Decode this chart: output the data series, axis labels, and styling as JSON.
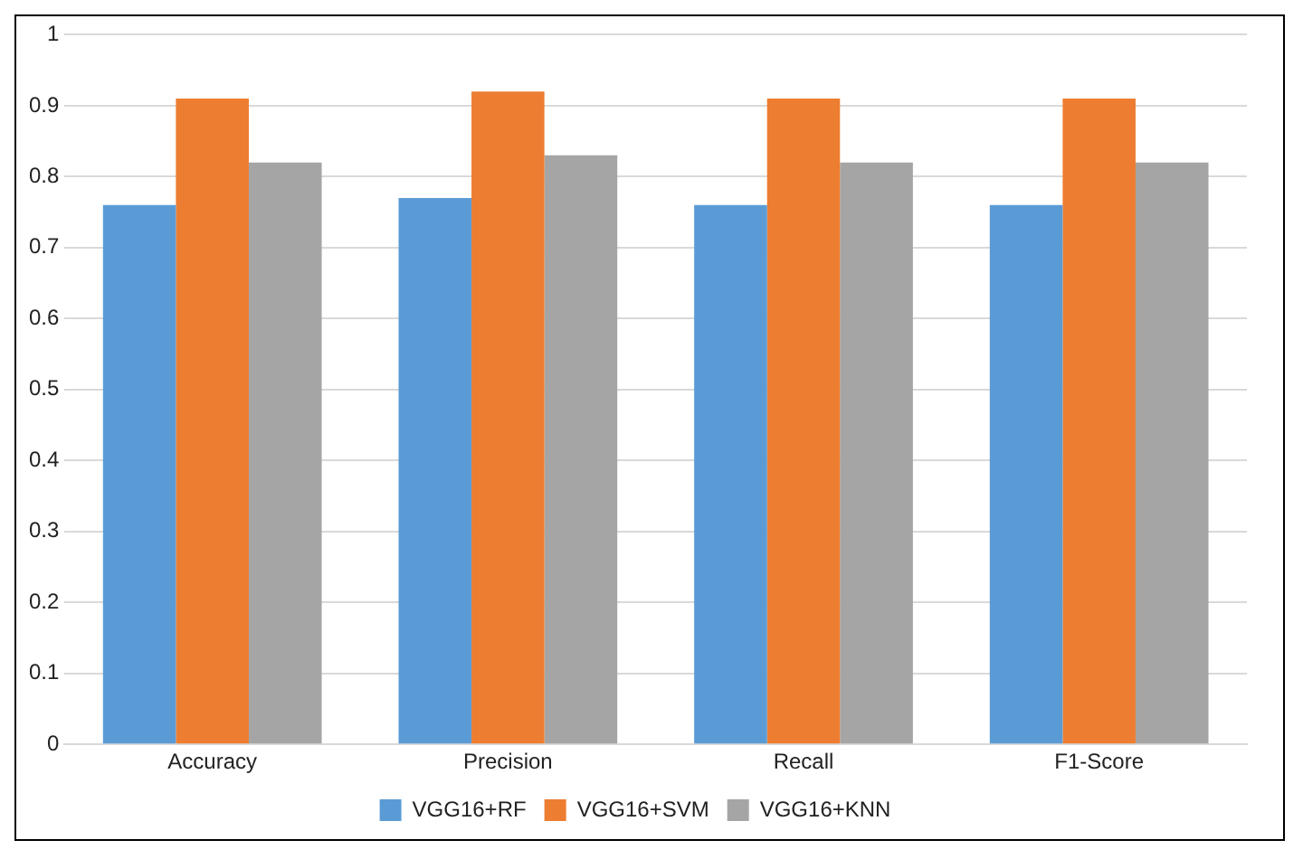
{
  "chart_data": {
    "type": "bar",
    "categories": [
      "Accuracy",
      "Precision",
      "Recall",
      "F1-Score"
    ],
    "series": [
      {
        "name": "VGG16+RF",
        "color": "#5b9bd5",
        "values": [
          0.76,
          0.77,
          0.76,
          0.76
        ]
      },
      {
        "name": "VGG16+SVM",
        "color": "#ed7d31",
        "values": [
          0.91,
          0.92,
          0.91,
          0.91
        ]
      },
      {
        "name": "VGG16+KNN",
        "color": "#a5a5a5",
        "values": [
          0.82,
          0.83,
          0.82,
          0.82
        ]
      }
    ],
    "ylim": [
      0,
      1
    ],
    "yticks": [
      0,
      0.1,
      0.2,
      0.3,
      0.4,
      0.5,
      0.6,
      0.7,
      0.8,
      0.9,
      1
    ],
    "grid": "y",
    "legend": "bottom"
  }
}
